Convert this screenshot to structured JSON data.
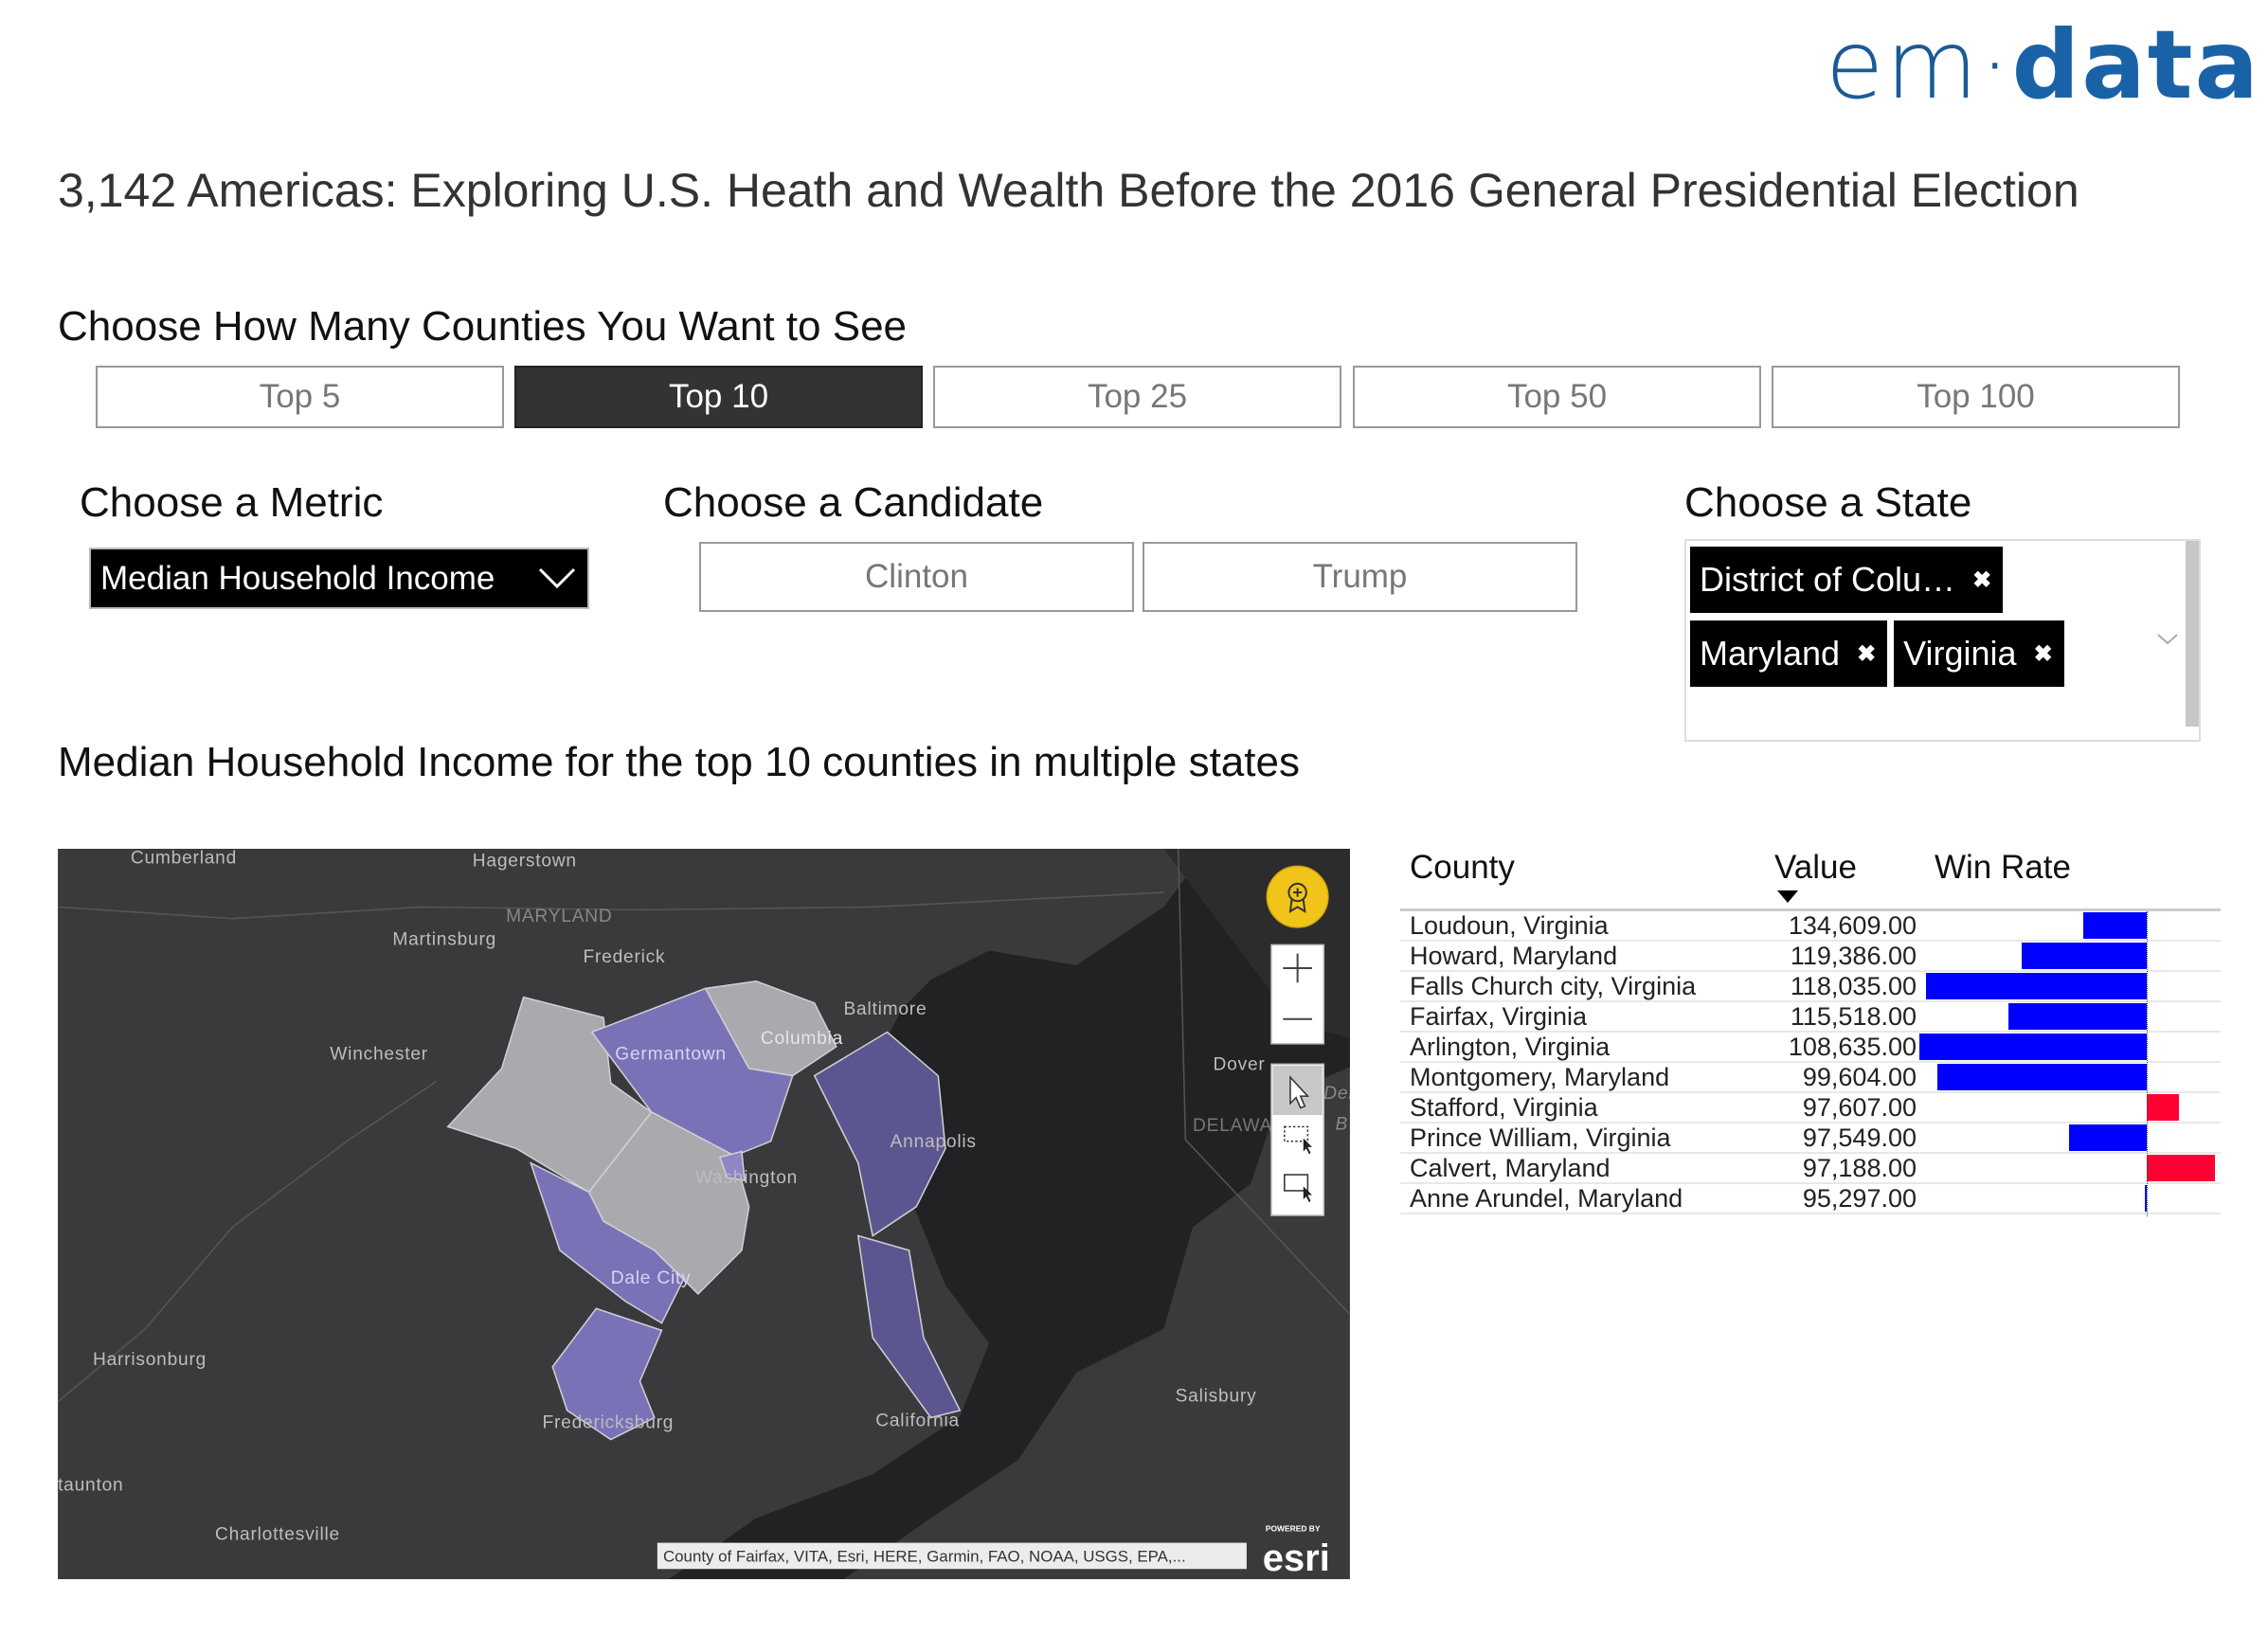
{
  "logo": {
    "left": "em",
    "dot": "·",
    "right": "data"
  },
  "title": "3,142 Americas: Exploring U.S. Heath and Wealth Before the 2016 General Presidential Election",
  "count_selector": {
    "label": "Choose How Many Counties You Want to See",
    "options": [
      "Top 5",
      "Top 10",
      "Top 25",
      "Top 50",
      "Top 100"
    ],
    "selected": "Top 10"
  },
  "metric": {
    "label": "Choose a Metric",
    "selected": "Median Household Income"
  },
  "candidate": {
    "label": "Choose a Candidate",
    "options": [
      "Clinton",
      "Trump"
    ]
  },
  "state": {
    "label": "Choose a State",
    "chips": [
      "District of Colu…",
      "Maryland",
      "Virginia"
    ],
    "remove_glyph": "✖"
  },
  "subtitle": "Median Household Income for the top 10 counties in multiple states",
  "map": {
    "labels": [
      "Cumberland",
      "Hagerstown",
      "MARYLAND",
      "Martinsburg",
      "Frederick",
      "Baltimore",
      "Winchester",
      "Germantown",
      "Columbia",
      "Dover",
      "DELAWA",
      "Dela",
      "B",
      "Annapolis",
      "Washington",
      "Dale City",
      "Harrisonburg",
      "Fredericksburg",
      "California",
      "Salisbury",
      "taunton",
      "Charlottesville"
    ],
    "attribution": "County of Fairfax, VITA, Esri, HERE, Garmin, FAO, NOAA, USGS, EPA,...",
    "esri_powered": "POWERED BY",
    "esri_logo": "esri",
    "colors": {
      "background": "#3a3a3c",
      "water": "#222224",
      "light_county": "#a9a9ae",
      "purple_county": "#7a72b6",
      "dark_purple_county": "#5b5690"
    },
    "controls": [
      "default-extent-icon",
      "zoom-in-icon",
      "zoom-out-icon",
      "pointer-select-icon",
      "rectangle-select-icon",
      "lasso-select-icon"
    ]
  },
  "table": {
    "headers": {
      "county": "County",
      "value": "Value",
      "win_rate": "Win Rate"
    },
    "sort": "value-descending",
    "colors": {
      "clinton": "#0000ff",
      "trump": "#ff0033"
    },
    "rows": [
      {
        "county": "Loudoun, Virginia",
        "value": "134,609.00",
        "win_rate": -0.28
      },
      {
        "county": "Howard, Maryland",
        "value": "119,386.00",
        "win_rate": -0.55
      },
      {
        "county": "Falls Church city, Virginia",
        "value": "118,035.00",
        "win_rate": -0.97
      },
      {
        "county": "Fairfax, Virginia",
        "value": "115,518.00",
        "win_rate": -0.61
      },
      {
        "county": "Arlington, Virginia",
        "value": "108,635.00",
        "win_rate": -1.0
      },
      {
        "county": "Montgomery, Maryland",
        "value": "99,604.00",
        "win_rate": -0.92
      },
      {
        "county": "Stafford, Virginia",
        "value": "97,607.00",
        "win_rate": 0.14
      },
      {
        "county": "Prince William, Virginia",
        "value": "97,549.00",
        "win_rate": -0.34
      },
      {
        "county": "Calvert, Maryland",
        "value": "97,188.00",
        "win_rate": 0.3
      },
      {
        "county": "Anne Arundel, Maryland",
        "value": "95,297.00",
        "win_rate": -0.01
      }
    ]
  }
}
